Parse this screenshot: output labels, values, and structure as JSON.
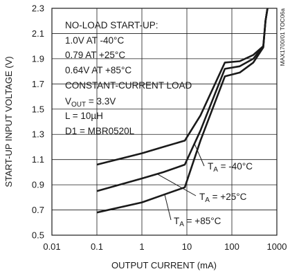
{
  "chart_data": {
    "type": "line",
    "title": "",
    "xlabel": "OUTPUT CURRENT (mA)",
    "ylabel": "START-UP INPUT VOLTAGE (V)",
    "xscale": "log",
    "xlim": [
      0.01,
      1000
    ],
    "ylim": [
      0.5,
      2.3
    ],
    "x_ticks": [
      "0.01",
      "0.1",
      "1",
      "10",
      "100",
      "1000"
    ],
    "y_ticks": [
      "0.5",
      "0.7",
      "0.9",
      "1.1",
      "1.3",
      "1.5",
      "1.7",
      "1.9",
      "2.1",
      "2.3"
    ],
    "grid": true,
    "figure_code": "MAX1700/01 TOC06a",
    "annotations": [
      "NO-LOAD START-UP:",
      "1.0V AT -40°C",
      "0.79 AT +25°C",
      "0.64V AT +85°C",
      "CONSTANT-CURRENT LOAD",
      "L = 10µH",
      "D1 = MBR0520L"
    ],
    "vout_note": {
      "prefix": "V",
      "sub": "OUT",
      "suffix": " = 3.3V"
    },
    "series": [
      {
        "label_prefix": "T",
        "label_sub": "A",
        "label_suffix": " = -40°C",
        "points": [
          [
            0.1,
            1.06
          ],
          [
            1,
            1.15
          ],
          [
            3,
            1.2
          ],
          [
            9,
            1.25
          ],
          [
            20,
            1.45
          ],
          [
            70,
            1.87
          ],
          [
            150,
            1.88
          ],
          [
            300,
            1.93
          ],
          [
            500,
            2.0
          ],
          [
            560,
            2.2
          ],
          [
            620,
            2.3
          ]
        ]
      },
      {
        "label_prefix": "T",
        "label_sub": "A",
        "label_suffix": " = +25°C",
        "points": [
          [
            0.1,
            0.85
          ],
          [
            1,
            0.95
          ],
          [
            3,
            1.0
          ],
          [
            9,
            1.06
          ],
          [
            20,
            1.33
          ],
          [
            70,
            1.82
          ],
          [
            150,
            1.84
          ],
          [
            300,
            1.9
          ],
          [
            500,
            2.0
          ],
          [
            560,
            2.2
          ],
          [
            620,
            2.3
          ]
        ]
      },
      {
        "label_prefix": "T",
        "label_sub": "A",
        "label_suffix": " = +85°C",
        "points": [
          [
            0.1,
            0.68
          ],
          [
            1,
            0.76
          ],
          [
            3,
            0.82
          ],
          [
            9,
            0.88
          ],
          [
            20,
            1.25
          ],
          [
            70,
            1.76
          ],
          [
            150,
            1.79
          ],
          [
            300,
            1.87
          ],
          [
            500,
            1.99
          ],
          [
            560,
            2.2
          ],
          [
            620,
            2.3
          ]
        ]
      }
    ]
  }
}
